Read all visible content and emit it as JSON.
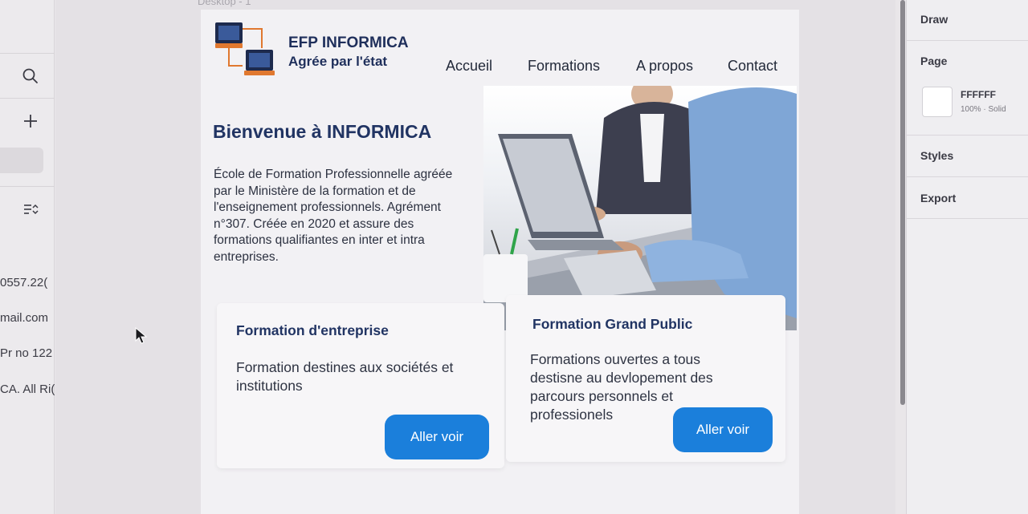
{
  "canvas": {
    "frame_label": "Desktop - 1"
  },
  "left_panel": {
    "clipped_texts": [
      "0557.22(",
      "mail.com",
      "Pr no 122",
      "CA. All Ri("
    ]
  },
  "site": {
    "brand": {
      "name": "EFP INFORMICA",
      "tagline": "Agrée par l'état"
    },
    "nav": [
      "Accueil",
      "Formations",
      "A propos",
      "Contact"
    ],
    "hero": {
      "title": "Bienvenue à INFORMICA",
      "text": "École de Formation Professionnelle agréée par le Ministère de la formation et de l'enseignement professionnels. Agrément n°307. Créée en 2020 et assure des formations qualifiantes en inter et intra entreprises."
    },
    "cards": [
      {
        "title": "Formation d'entreprise",
        "description": "Formation destines aux sociétés et institutions",
        "button": "Aller voir"
      },
      {
        "title": "Formation Grand Public",
        "description": "Formations ouvertes a tous destisne au devlopement des parcours personnels et professionels",
        "button": "Aller voir"
      }
    ]
  },
  "right_panel": {
    "draw_label": "Draw",
    "page_label": "Page",
    "page_fill": {
      "hex": "FFFFFF",
      "opacity": "100% · Solid"
    },
    "styles_label": "Styles",
    "export_label": "Export"
  },
  "colors": {
    "accent_button": "#1b7fdb",
    "heading_navy": "#213463",
    "logo_orange": "#e0782f"
  }
}
